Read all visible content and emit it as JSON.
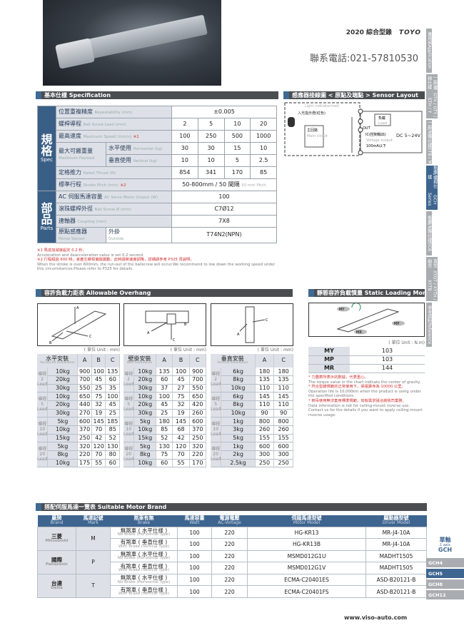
{
  "header": {
    "year": "2020",
    "catalog": "綜合型錄",
    "brand_logo": "TOYO",
    "phone": "聯系電話:021-57810530"
  },
  "sidebar": {
    "tabs": [
      {
        "zh": "應用例",
        "en": "Application"
      },
      {
        "zh": "一般/螺桿仕樣",
        "en": "GTH / GTY / ETH / Y"
      },
      {
        "zh": "一般/皮帶仕樣",
        "en": "ETB / M"
      },
      {
        "zh": "無塵/螺桿仕樣",
        "en": "GCH Series",
        "active": true
      },
      {
        "zh": "無塵/皮帶仕樣",
        "en": "ECB"
      },
      {
        "zh": "直交組合",
        "en": "XYGT / XYTH / XYTB"
      },
      {
        "zh": "參考資料",
        "en": "Reference"
      }
    ],
    "axis_zh": "單軸",
    "axis_en": "1 axis",
    "series": "GCH",
    "models": [
      {
        "label": "GCH4"
      },
      {
        "label": "GCH5",
        "active": true
      },
      {
        "label": "GCH8"
      },
      {
        "label": "GCH12"
      }
    ]
  },
  "spec": {
    "title": "基本仕樣 Specification",
    "group_spec_zh": "規格",
    "group_spec_en": "Spec",
    "group_parts_zh": "部品",
    "group_parts_en": "Parts",
    "rows": {
      "repeat": {
        "zh": "位置重複精度",
        "en": "Repeatability (mm)",
        "value": "±0.005"
      },
      "lead": {
        "zh": "螺桿導程",
        "en": "Ball Screw Lead (mm)",
        "values": [
          "2",
          "5",
          "10",
          "20"
        ]
      },
      "speed": {
        "zh": "最高速度",
        "en": "Maximum Speed (mm/s)",
        "note": "※1",
        "values": [
          "100",
          "250",
          "500",
          "1000"
        ]
      },
      "payload": {
        "zh": "最大可搬重量",
        "en": "Maximum Payload",
        "h_zh": "水平使用",
        "h_en": "Horizontal (kg)",
        "h_values": [
          "30",
          "30",
          "15",
          "10"
        ],
        "v_zh": "垂直使用",
        "v_en": "Vertical (kg)",
        "v_values": [
          "10",
          "10",
          "5",
          "2.5"
        ]
      },
      "thrust": {
        "zh": "定格推力",
        "en": "Rated Thrust (N)",
        "values": [
          "854",
          "341",
          "170",
          "85"
        ]
      },
      "stroke": {
        "zh": "標準行程",
        "en": "Stroke Pitch (mm)",
        "note": "※2",
        "value": "50-800mm / 50 間隔",
        "value_en": "50 mm Pitch"
      },
      "motor": {
        "zh": "AC 伺服馬達容量",
        "en": "AC Servo Motor Output (W)",
        "value": "100"
      },
      "screw": {
        "zh": "滾珠螺桿外徑",
        "en": "Ball Screw Ø (mm)",
        "value": "C7Ø12"
      },
      "coupling": {
        "zh": "連軸器",
        "en": "Coupling (mm)",
        "value": "7X8"
      },
      "sensor": {
        "zh": "原點感應器",
        "en": "Home Sensor",
        "sub_zh": "外掛",
        "sub_en": "Outside",
        "value": "T74N2(NPN)"
      }
    },
    "notes": [
      "※1 馬達加減速設定 0.2 秒。",
      "Acceleration and deacceleration value is set 0.2 second.",
      "※2 行程超過 600 時，會產生螺桿偏擺震動，此時請將速度調降，詳細請參考 P325 頁說明。",
      "When the stroke is over 600mm, the run-out of the ballscrew will occur.We recommend to low down the working speed under this circumstances.Please refer to P325 for details."
    ]
  },
  "sensor_layout": {
    "title": "感應器接線圖 < 原點及端點 > Sensor Layout",
    "light_indicator": "Light indicator(red)",
    "lamp_zh": "入光指示燈(紅色)",
    "main_zh": "主回路",
    "main_en": "Main circuit",
    "load_zh": "負載",
    "load_en": "Load",
    "out": "OUT",
    "ic": "IC(控制輸出)",
    "voltage_en": "Voltage output",
    "current": "100mA以下",
    "dc": "DC 5~24V"
  },
  "overhang": {
    "title": "容許負載力距表 Allowable Overhang",
    "unit": "( 單位 Unit : mm)",
    "lead_zh": "導程",
    "lead_en": "Lead",
    "tables": [
      {
        "name_zh": "水平安裝",
        "name_en": "Horizontal Installation",
        "cols": [
          "A",
          "B",
          "C"
        ],
        "groups": [
          {
            "lead": "2",
            "rows": [
              [
                "10kg",
                "900",
                "100",
                "135"
              ],
              [
                "20kg",
                "700",
                "45",
                "60"
              ],
              [
                "30kg",
                "550",
                "25",
                "35"
              ]
            ]
          },
          {
            "lead": "5",
            "rows": [
              [
                "10kg",
                "650",
                "75",
                "100"
              ],
              [
                "20kg",
                "440",
                "32",
                "45"
              ],
              [
                "30kg",
                "270",
                "19",
                "25"
              ]
            ]
          },
          {
            "lead": "10",
            "rows": [
              [
                "5kg",
                "600",
                "145",
                "185"
              ],
              [
                "10kg",
                "370",
                "70",
                "85"
              ],
              [
                "15kg",
                "250",
                "42",
                "52"
              ]
            ]
          },
          {
            "lead": "20",
            "rows": [
              [
                "5kg",
                "320",
                "120",
                "130"
              ],
              [
                "8kg",
                "220",
                "70",
                "80"
              ],
              [
                "10kg",
                "175",
                "55",
                "60"
              ]
            ]
          }
        ]
      },
      {
        "name_zh": "壁掛安裝",
        "name_en": "Wall Installation",
        "cols": [
          "A",
          "B",
          "C"
        ],
        "groups": [
          {
            "lead": "2",
            "rows": [
              [
                "10kg",
                "135",
                "100",
                "900"
              ],
              [
                "20kg",
                "60",
                "45",
                "700"
              ],
              [
                "30kg",
                "37",
                "27",
                "550"
              ]
            ]
          },
          {
            "lead": "5",
            "rows": [
              [
                "10kg",
                "100",
                "75",
                "650"
              ],
              [
                "20kg",
                "45",
                "32",
                "420"
              ],
              [
                "30kg",
                "25",
                "19",
                "260"
              ]
            ]
          },
          {
            "lead": "10",
            "rows": [
              [
                "5kg",
                "180",
                "145",
                "600"
              ],
              [
                "10kg",
                "85",
                "68",
                "370"
              ],
              [
                "15kg",
                "52",
                "42",
                "250"
              ]
            ]
          },
          {
            "lead": "20",
            "rows": [
              [
                "5kg",
                "130",
                "120",
                "320"
              ],
              [
                "8kg",
                "75",
                "70",
                "220"
              ],
              [
                "10kg",
                "60",
                "55",
                "170"
              ]
            ]
          }
        ]
      },
      {
        "name_zh": "垂直安裝",
        "name_en": "Vertical Installation",
        "cols": [
          "A",
          "C"
        ],
        "groups": [
          {
            "lead": "2",
            "rows": [
              [
                "6kg",
                "180",
                "180"
              ],
              [
                "8kg",
                "135",
                "135"
              ],
              [
                "10kg",
                "110",
                "110"
              ]
            ]
          },
          {
            "lead": "5",
            "rows": [
              [
                "6kg",
                "145",
                "145"
              ],
              [
                "8kg",
                "110",
                "110"
              ],
              [
                "10kg",
                "90",
                "90"
              ]
            ]
          },
          {
            "lead": "10",
            "rows": [
              [
                "1kg",
                "800",
                "800"
              ],
              [
                "3kg",
                "260",
                "260"
              ],
              [
                "5kg",
                "155",
                "155"
              ]
            ]
          },
          {
            "lead": "20",
            "rows": [
              [
                "1kg",
                "600",
                "600"
              ],
              [
                "2kg",
                "300",
                "300"
              ],
              [
                "2.5kg",
                "250",
                "250"
              ]
            ]
          }
        ]
      }
    ]
  },
  "static_moment": {
    "title": "靜態容許負載慣量 Static Loading Moment",
    "unit": "( 單位 Unit : N.m)",
    "rows": [
      {
        "k": "MY",
        "v": "103"
      },
      {
        "k": "MP",
        "v": "103"
      },
      {
        "k": "MR",
        "v": "144"
      }
    ],
    "notes": [
      {
        "t": "* 力圖表所表示的數據，代表重心。",
        "red": true
      },
      {
        "t": "The torque value in the chart indicate the center of gravity."
      },
      {
        "t": "* 符合型錄規範的正常使用下，保證壽命為 10000 公里。",
        "red": true
      },
      {
        "t": "Operation life is 10,000km when the product is using under the specified conditions."
      },
      {
        "t": "* 倒吊使用無法套用標準規範，如有需求請洽詢我司業務。",
        "red": true
      },
      {
        "t": "Data information is not for ceiling-mount inverse use."
      },
      {
        "t": "Contact us for the details if you want to apply ceiling-mount inverse usage."
      }
    ]
  },
  "motor_brand": {
    "title": "搭配伺服馬達一覽表 Suitable Motor Brand",
    "headers": [
      {
        "zh": "廠牌",
        "en": "Brand"
      },
      {
        "zh": "馬達記號",
        "en": "Mark"
      },
      {
        "zh": "煞車有無",
        "en": "Brake"
      },
      {
        "zh": "馬達容量",
        "en": "Watt"
      },
      {
        "zh": "電源電壓",
        "en": "AC-Voltage"
      },
      {
        "zh": "伺服馬達型號",
        "en": "Motor Model"
      },
      {
        "zh": "驅動器型號",
        "en": "Driver Model"
      }
    ],
    "brands": [
      {
        "zh": "三菱",
        "en": "Mitsubishi",
        "mark": "M",
        "rows": [
          {
            "brake_zh": "無煞車 ( 水平仕樣 )",
            "brake_en": "No Brake (Horizontal Type)",
            "watt": "100",
            "volt": "220",
            "motor": "HG-KR13",
            "driver": "MR-J4-10A"
          },
          {
            "brake_zh": "有煞車 ( 垂直仕樣 )",
            "brake_en": "With Brake (Vertical Type)",
            "watt": "100",
            "volt": "220",
            "motor": "HG-KR13B",
            "driver": "MR-J4-10A"
          }
        ]
      },
      {
        "zh": "國際",
        "en": "Panasonic",
        "mark": "P",
        "rows": [
          {
            "brake_zh": "無煞車 ( 水平仕樣 )",
            "brake_en": "No Brake (Horizontal Type)",
            "watt": "100",
            "volt": "220",
            "motor": "MSMD012G1U",
            "driver": "MADHT1505"
          },
          {
            "brake_zh": "有煞車 ( 垂直仕樣 )",
            "brake_en": "With Brake (Vertical Type)",
            "watt": "100",
            "volt": "220",
            "motor": "MSMD012G1V",
            "driver": "MADHT1505"
          }
        ]
      },
      {
        "zh": "台達",
        "en": "Delta",
        "mark": "T",
        "rows": [
          {
            "brake_zh": "無煞車 ( 水平仕樣 )",
            "brake_en": "No Brake (Horizontal Type)",
            "watt": "100",
            "volt": "220",
            "motor": "ECMA-C20401ES",
            "driver": "ASD-B20121-B"
          },
          {
            "brake_zh": "有煞車 ( 垂直仕樣 )",
            "brake_en": "With Brake (Vertical Type)",
            "watt": "100",
            "volt": "220",
            "motor": "ECMA-C20401FS",
            "driver": "ASD-B20121-B"
          }
        ]
      }
    ]
  },
  "colors": {
    "accent": "#3e6590",
    "section_bar": "#4b4d50",
    "label_bg": "#dde1e7",
    "note_red": "#d03030"
  },
  "footer": {
    "url": "www.viso-auto.com"
  }
}
